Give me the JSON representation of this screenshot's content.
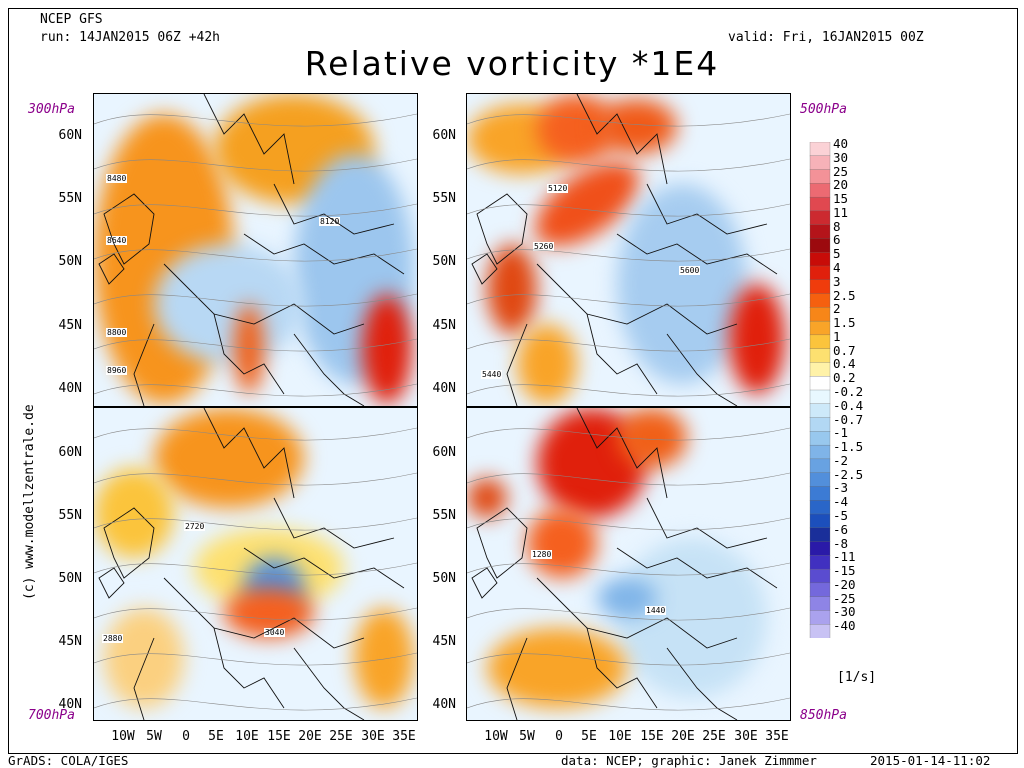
{
  "header": {
    "model": "NCEP GFS",
    "run": "run: 14JAN2015 06Z +42h",
    "valid": "valid: Fri, 16JAN2015 00Z",
    "title": "Relative vorticity *1E4"
  },
  "panels": [
    {
      "level": "300hPa",
      "contours": [
        "8480",
        "8640",
        "8120",
        "8800",
        "8960"
      ]
    },
    {
      "level": "500hPa",
      "contours": [
        "5120",
        "5260",
        "5600",
        "5440"
      ]
    },
    {
      "level": "700hPa",
      "contours": [
        "2720",
        "2880",
        "3040"
      ]
    },
    {
      "level": "850hPa",
      "contours": [
        "1280",
        "1440"
      ]
    }
  ],
  "lat_labels": [
    "60N",
    "55N",
    "50N",
    "45N",
    "40N"
  ],
  "lon_labels": [
    "10W",
    "5W",
    "0",
    "5E",
    "10E",
    "15E",
    "20E",
    "25E",
    "30E",
    "35E"
  ],
  "colorbar": {
    "labels": [
      "40",
      "30",
      "25",
      "20",
      "15",
      "11",
      "8",
      "6",
      "5",
      "4",
      "3",
      "2.5",
      "2",
      "1.5",
      "1",
      "0.7",
      "0.4",
      "0.2",
      "-0.2",
      "-0.4",
      "-0.7",
      "-1",
      "-1.5",
      "-2",
      "-2.5",
      "-3",
      "-4",
      "-5",
      "-6",
      "-8",
      "-11",
      "-15",
      "-20",
      "-25",
      "-30",
      "-40"
    ],
    "colors": [
      "#fbd2d6",
      "#f7b2b8",
      "#f39298",
      "#ec6a72",
      "#e04850",
      "#cc2a30",
      "#b4141a",
      "#9c0a0e",
      "#c80c08",
      "#e0200c",
      "#f03c0c",
      "#f5600f",
      "#f78618",
      "#f9a428",
      "#fbc43c",
      "#fde070",
      "#fff2a8",
      "#ffffff",
      "#e8f8ff",
      "#cde9f9",
      "#b2d8f4",
      "#98c8ee",
      "#7fb4e8",
      "#68a2e2",
      "#528fdb",
      "#3c7bd4",
      "#2a66c8",
      "#1c4fbc",
      "#1a2f9a",
      "#2a1aa8",
      "#4030c0",
      "#5a4cd0",
      "#7468dc",
      "#8e84e6",
      "#aaa2ee",
      "#c8c2f4"
    ],
    "unit": "[1/s]"
  },
  "footer": {
    "left": "GrADS: COLA/IGES",
    "credit": "data: NCEP; graphic: Janek Zimmmer",
    "timestamp": "2015-01-14-11:02",
    "side": "(c) www.modellzentrale.de"
  }
}
